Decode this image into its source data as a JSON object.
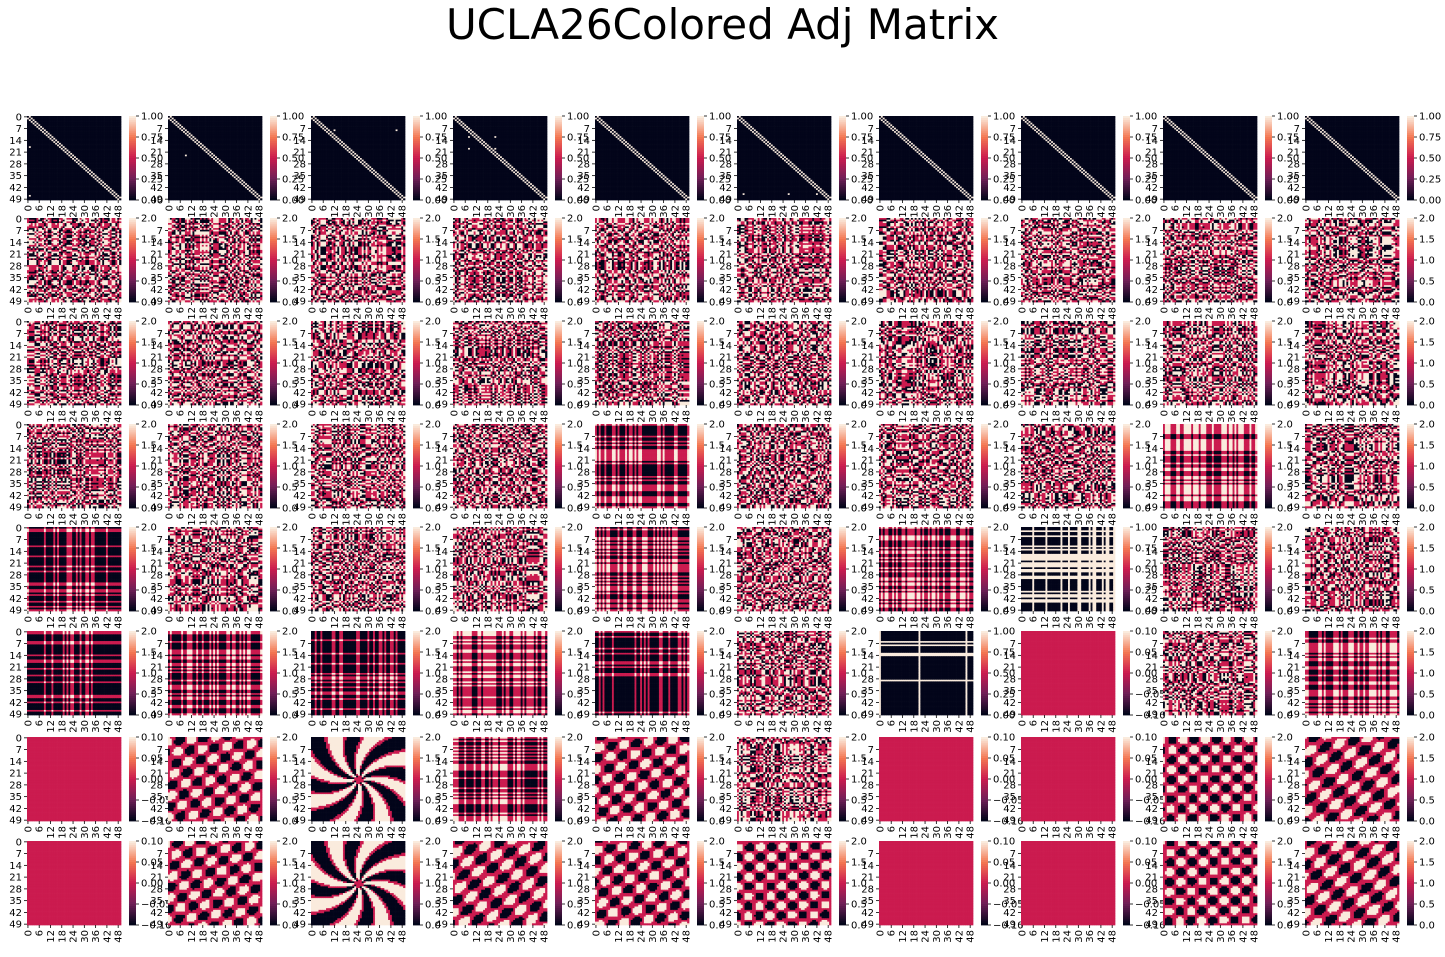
{
  "title": "UCLA26Colored Adj Matrix",
  "palette": [
    "#03051a",
    "#cb1b4f",
    "#faebdd"
  ],
  "chart_data": {
    "type": "heatmap",
    "rows": 8,
    "cols": 10,
    "matrix_size": 50,
    "y_ticks": [
      "0",
      "7",
      "14",
      "21",
      "28",
      "35",
      "42",
      "49"
    ],
    "y_ticks_alt": [
      "7",
      "14",
      "21",
      "28",
      "35",
      "42",
      "49"
    ],
    "x_ticks": [
      "0",
      "6",
      "12",
      "18",
      "24",
      "30",
      "36",
      "42",
      "48"
    ],
    "colorbars": {
      "binary": {
        "range": [
          0,
          1
        ],
        "ticks": [
          "1.00",
          "0.75",
          "0.50",
          "0.25",
          "0.00"
        ]
      },
      "ternary": {
        "range": [
          0,
          2
        ],
        "ticks": [
          "2.0",
          "1.5",
          "1.0",
          "0.5",
          "0.0"
        ]
      },
      "ternary_wide": {
        "range": [
          0,
          2
        ],
        "ticks": [
          "2.0",
          "1.5",
          "1.0",
          "0.5",
          "0.0"
        ]
      },
      "degenerate": {
        "range": [
          -0.1,
          0.1
        ],
        "ticks": [
          "0.10",
          "0.05",
          "0.00",
          "−0.05",
          "−0.10"
        ]
      },
      "binary_short": {
        "range": [
          0,
          1
        ],
        "ticks": [
          "1.00",
          "0.75",
          "0.50",
          "0.25"
        ]
      }
    },
    "panel_kinds": [
      [
        "adjacency",
        "adjacency",
        "adjacency",
        "adjacency",
        "adjacency",
        "adjacency",
        "adjacency",
        "adjacency",
        "adjacency",
        "adjacency"
      ],
      [
        "colored",
        "colored",
        "colored",
        "colored",
        "colored",
        "colored",
        "colored",
        "colored",
        "colored",
        "colored"
      ],
      [
        "colored",
        "colored",
        "colored",
        "colored",
        "colored",
        "colored",
        "colored",
        "colored",
        "colored",
        "colored"
      ],
      [
        "colored",
        "colored",
        "colored",
        "colored",
        "blocks",
        "colored",
        "colored",
        "colored",
        "blocks",
        "colored"
      ],
      [
        "stripes",
        "colored",
        "colored",
        "colored",
        "blocks",
        "colored",
        "blocks",
        "blocks-light",
        "colored",
        "colored"
      ],
      [
        "stripes",
        "blocks",
        "stripes",
        "blocks",
        "stripes",
        "colored",
        "binary-grid",
        "uniform",
        "colored",
        "blocks"
      ],
      [
        "uniform",
        "waves",
        "radial",
        "blocks",
        "waves",
        "colored",
        "uniform",
        "uniform",
        "waves",
        "waves"
      ],
      [
        "uniform",
        "waves",
        "radial",
        "waves",
        "waves",
        "waves",
        "uniform",
        "uniform",
        "waves",
        "waves"
      ]
    ],
    "panel_scales": [
      [
        "binary",
        "binary",
        "binary",
        "binary",
        "binary",
        "binary",
        "binary",
        "binary",
        "binary",
        "binary"
      ],
      [
        "ternary",
        "ternary",
        "ternary",
        "ternary",
        "ternary",
        "ternary",
        "ternary",
        "ternary",
        "ternary",
        "ternary"
      ],
      [
        "ternary",
        "ternary",
        "ternary",
        "ternary",
        "ternary",
        "ternary",
        "ternary",
        "ternary",
        "ternary",
        "ternary"
      ],
      [
        "ternary",
        "ternary",
        "ternary",
        "ternary",
        "ternary",
        "ternary",
        "ternary",
        "ternary",
        "ternary",
        "ternary"
      ],
      [
        "ternary",
        "ternary",
        "ternary",
        "ternary",
        "ternary",
        "ternary",
        "ternary",
        "binary",
        "ternary",
        "ternary"
      ],
      [
        "ternary",
        "ternary",
        "ternary",
        "ternary",
        "ternary",
        "ternary",
        "binary",
        "degenerate",
        "ternary",
        "ternary"
      ],
      [
        "degenerate",
        "ternary",
        "ternary",
        "ternary",
        "ternary",
        "ternary",
        "degenerate",
        "degenerate",
        "ternary",
        "ternary"
      ],
      [
        "degenerate",
        "ternary",
        "ternary",
        "ternary",
        "ternary",
        "ternary",
        "degenerate",
        "degenerate",
        "ternary",
        "ternary"
      ]
    ]
  }
}
